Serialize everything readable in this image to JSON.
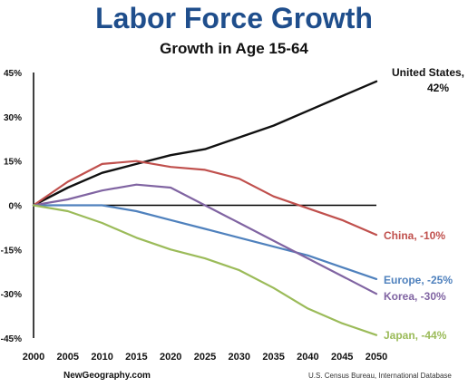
{
  "chart_data": {
    "type": "line",
    "title": "Labor Force Growth",
    "subtitle": "Growth in Age 15-64",
    "x": [
      2000,
      2005,
      2010,
      2015,
      2020,
      2025,
      2030,
      2035,
      2040,
      2045,
      2050
    ],
    "x_tick_labels": [
      "2000",
      "2005",
      "2010",
      "2015",
      "2020",
      "2025",
      "2030",
      "2035",
      "2040",
      "2045",
      "2050"
    ],
    "y_tick_labels": [
      "45%",
      "30%",
      "15%",
      "0%",
      "-15%",
      "-30%",
      "-45%"
    ],
    "y_ticks": [
      45,
      30,
      15,
      0,
      -15,
      -30,
      -45
    ],
    "xlim": [
      2000,
      2050
    ],
    "ylim": [
      -45,
      45
    ],
    "grid": false,
    "series": [
      {
        "name": "United States",
        "label": "United States,",
        "label2": "42%",
        "color": "#111111",
        "values": [
          0,
          6,
          11,
          14,
          17,
          19,
          23,
          27,
          32,
          37,
          42
        ]
      },
      {
        "name": "China",
        "label": "China, -10%",
        "color": "#c0504d",
        "values": [
          0,
          8,
          14,
          15,
          13,
          12,
          9,
          3,
          -1,
          -5,
          -10
        ]
      },
      {
        "name": "Europe",
        "label": "Europe, -25%",
        "color": "#4f81bd",
        "values": [
          0,
          0,
          0,
          -2,
          -5,
          -8,
          -11,
          -14,
          -17,
          -21,
          -25
        ]
      },
      {
        "name": "Korea",
        "label": "Korea, -30%",
        "color": "#8064a2",
        "values": [
          0,
          2,
          5,
          7,
          6,
          0,
          -6,
          -12,
          -18,
          -24,
          -30
        ]
      },
      {
        "name": "Japan",
        "label": "Japan, -44%",
        "color": "#9bbb59",
        "values": [
          0,
          -2,
          -6,
          -11,
          -15,
          -18,
          -22,
          -28,
          -35,
          -40,
          -44
        ]
      }
    ],
    "source_left": "NewGeography.com",
    "source_right": "U.S. Census Bureau, International Database"
  }
}
